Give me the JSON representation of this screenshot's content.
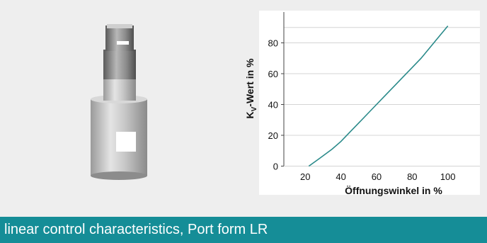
{
  "caption": "linear control characteristics, Port form LR",
  "colors": {
    "background": "#eeeeee",
    "chart_background": "#ffffff",
    "caption_bar": "#158d97",
    "curve": "#2a8a8a",
    "grid": "#d4d4d4"
  },
  "chart_data": {
    "type": "line",
    "xlabel": "Öffnungswinkel in %",
    "ylabel_main": "K",
    "ylabel_sub": "V",
    "ylabel_rest": "-Wert in %",
    "x_ticks": [
      "20",
      "40",
      "60",
      "80",
      "100"
    ],
    "y_ticks": [
      "0",
      "20",
      "40",
      "60",
      "80"
    ],
    "xlim": [
      8,
      118
    ],
    "ylim": [
      -3,
      100
    ],
    "grid": true,
    "series": [
      {
        "x": [
          22,
          28,
          35,
          40,
          45,
          50,
          55,
          60,
          65,
          70,
          75,
          80,
          85,
          90,
          95,
          100
        ],
        "values": [
          0,
          5,
          11,
          16,
          22,
          28,
          34,
          40,
          46,
          52,
          58,
          64,
          70,
          77,
          84,
          91
        ]
      }
    ]
  }
}
